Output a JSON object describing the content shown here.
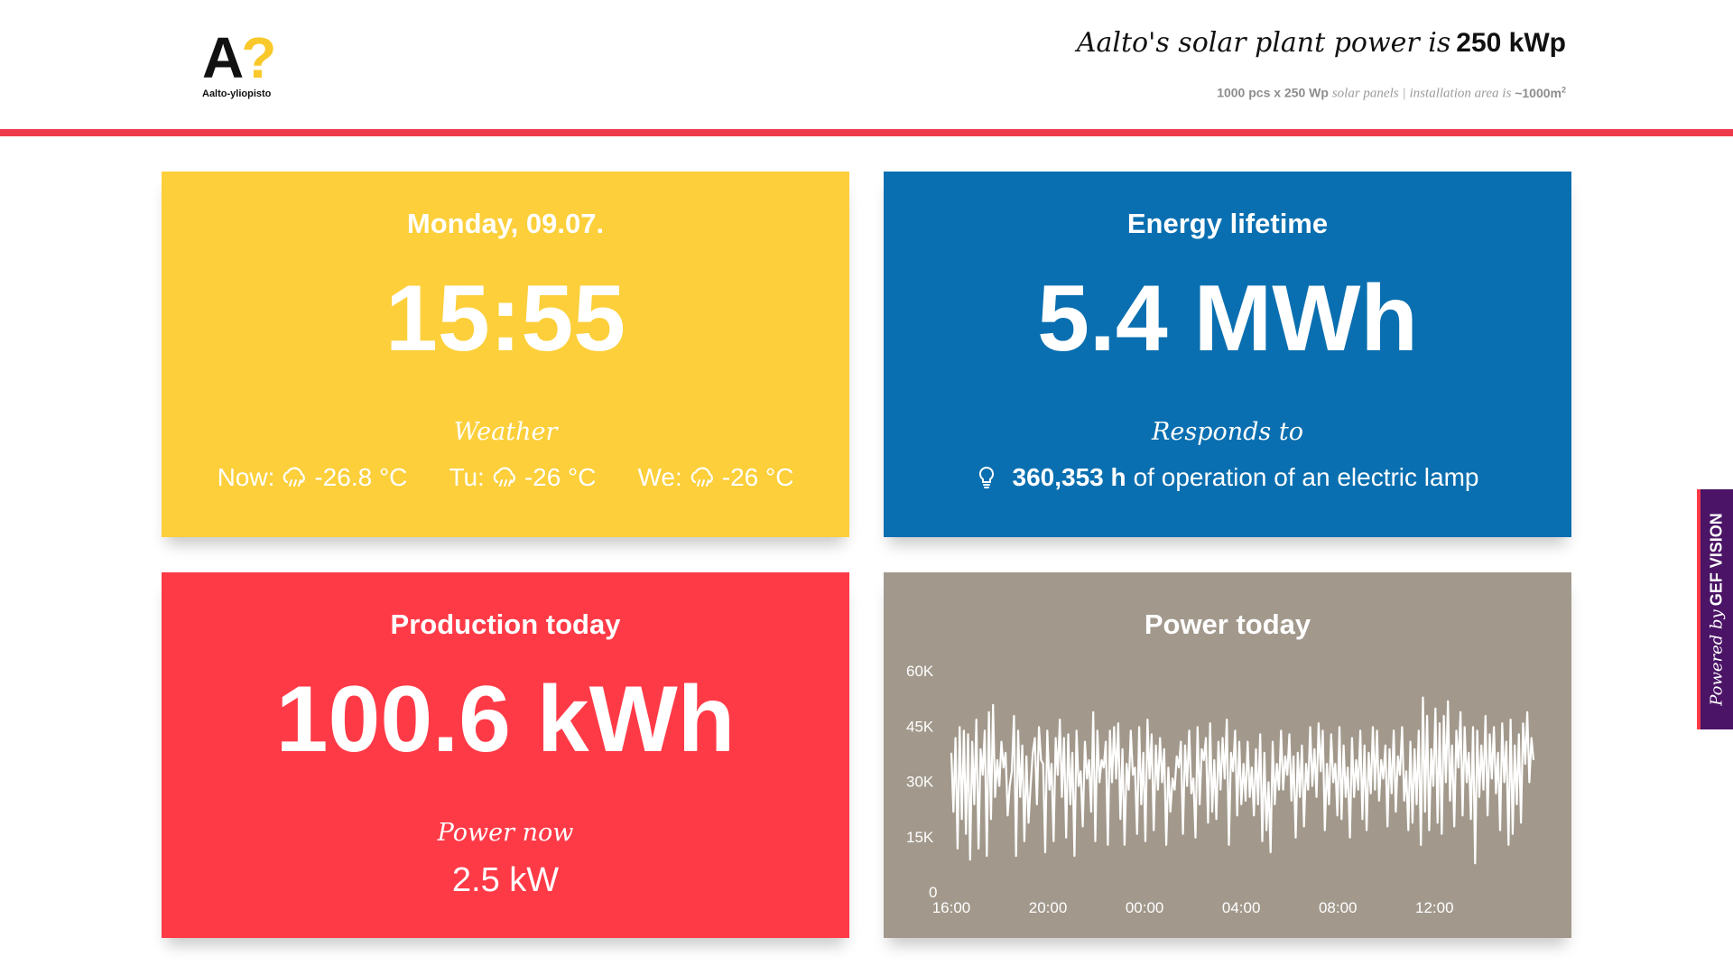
{
  "header": {
    "logo_text": "Aalto-yliopisto",
    "logo_mark": "A?",
    "tagline_lead": "Aalto's solar plant power is",
    "tagline_value": "250 kWp",
    "sub_count": "1000 pcs x 250 Wp",
    "sub_panels": "solar panels",
    "sub_separator": "|",
    "sub_area_label": "installation area is",
    "sub_area_value": "~1000m",
    "sub_area_sup": "2"
  },
  "date_card": {
    "date": "Monday, 09.07.",
    "time": "15:55",
    "weather_label": "Weather",
    "weather": [
      {
        "label": "Now:",
        "icon": "rain-cloud-icon",
        "temp": "-26.8 °C"
      },
      {
        "label": "Tu:",
        "icon": "rain-cloud-icon",
        "temp": "-26 °C"
      },
      {
        "label": "We:",
        "icon": "rain-cloud-icon",
        "temp": "-26 °C"
      }
    ]
  },
  "energy_card": {
    "title": "Energy lifetime",
    "value": "5.4 MWh",
    "responds_label": "Responds to",
    "lamp_icon": "lightbulb-icon",
    "lamp_hours": "360,353 h",
    "lamp_text": "of operation of an electric lamp"
  },
  "production_card": {
    "title": "Production today",
    "value": "100.6 kWh",
    "power_now_label": "Power now",
    "power_now_value": "2.5 kW"
  },
  "power_card": {
    "title": "Power today"
  },
  "side_tab": {
    "powered_by": "Powered by",
    "brand": "GEF VISION"
  },
  "colors": {
    "yellow": "#fccf3b",
    "blue": "#0a6fb0",
    "red": "#ff3a47",
    "gray": "#a2998c",
    "accent_line": "#ee3a4d",
    "side_tab": "#4b1466"
  },
  "chart_data": {
    "type": "line",
    "title": "Power today",
    "xlabel": "",
    "ylabel": "",
    "x_tick_labels": [
      "16:00",
      "20:00",
      "00:00",
      "04:00",
      "08:00",
      "12:00"
    ],
    "y_tick_labels": [
      "0",
      "15K",
      "30K",
      "45K",
      "60K"
    ],
    "y_ticks": [
      0,
      15000,
      30000,
      45000,
      60000
    ],
    "ylim": [
      0,
      60000
    ],
    "x_hours_range": [
      16,
      40.1
    ],
    "grid": false,
    "legend": "none",
    "line_color": "#ffffff",
    "series": [
      {
        "values": [
          38000,
          22000,
          42000,
          12000,
          45000,
          20000,
          44000,
          16000,
          43000,
          9000,
          41000,
          24000,
          47000,
          12000,
          39000,
          32000,
          44000,
          10000,
          49000,
          20000,
          51000,
          26000,
          36000,
          29000,
          41000,
          34000,
          38000,
          21000,
          29000,
          33000,
          48000,
          10000,
          44000,
          26000,
          40000,
          14000,
          37000,
          19000,
          29000,
          38000,
          42000,
          24000,
          45000,
          36000,
          35000,
          11000,
          44000,
          28000,
          35000,
          14000,
          42000,
          32000,
          47000,
          26000,
          42000,
          15000,
          43000,
          24000,
          38000,
          10000,
          44000,
          29000,
          33000,
          18000,
          41000,
          31000,
          36000,
          22000,
          49000,
          14000,
          44000,
          30000,
          36000,
          34000,
          41000,
          13000,
          44000,
          30000,
          45000,
          31000,
          46000,
          20000,
          39000,
          13000,
          35000,
          28000,
          44000,
          32000,
          34000,
          16000,
          45000,
          24000,
          38000,
          14000,
          47000,
          31000,
          43000,
          17000,
          40000,
          28000,
          42000,
          30000,
          39000,
          13000,
          34000,
          22000,
          31000,
          28000,
          37000,
          34000,
          41000,
          16000,
          40000,
          29000,
          44000,
          27000,
          31000,
          15000,
          45000,
          24000,
          39000,
          36000,
          42000,
          19000,
          46000,
          22000,
          36000,
          20000,
          41000,
          28000,
          42000,
          31000,
          47000,
          13000,
          38000,
          33000,
          44000,
          21000,
          41000,
          24000,
          35000,
          25000,
          41000,
          26000,
          34000,
          21000,
          39000,
          24000,
          43000,
          14000,
          38000,
          17000,
          30000,
          11000,
          41000,
          24000,
          35000,
          28000,
          44000,
          28000,
          37000,
          32000,
          43000,
          25000,
          37000,
          15000,
          38000,
          26000,
          40000,
          18000,
          35000,
          28000,
          45000,
          29000,
          39000,
          26000,
          46000,
          33000,
          44000,
          17000,
          35000,
          24000,
          43000,
          30000,
          35000,
          21000,
          45000,
          20000,
          40000,
          26000,
          34000,
          15000,
          42000,
          26000,
          36000,
          28000,
          44000,
          20000,
          40000,
          17000,
          38000,
          27000,
          45000,
          28000,
          44000,
          25000,
          36000,
          31000,
          40000,
          18000,
          39000,
          27000,
          44000,
          22000,
          37000,
          32000,
          45000,
          25000,
          33000,
          17000,
          41000,
          19000,
          39000,
          24000,
          44000,
          13000,
          53000,
          22000,
          48000,
          17000,
          39000,
          29000,
          50000,
          19000,
          46000,
          16000,
          48000,
          30000,
          52000,
          25000,
          40000,
          18000,
          44000,
          34000,
          49000,
          21000,
          45000,
          30000,
          38000,
          20000,
          45000,
          8000,
          44000,
          26000,
          40000,
          28000,
          48000,
          21000,
          43000,
          31000,
          45000,
          27000,
          38000,
          17000,
          46000,
          30000,
          41000,
          13000,
          47000,
          16000,
          40000,
          24000,
          43000,
          19000,
          46000,
          35000,
          49000,
          30000,
          42000,
          36000
        ]
      }
    ]
  }
}
